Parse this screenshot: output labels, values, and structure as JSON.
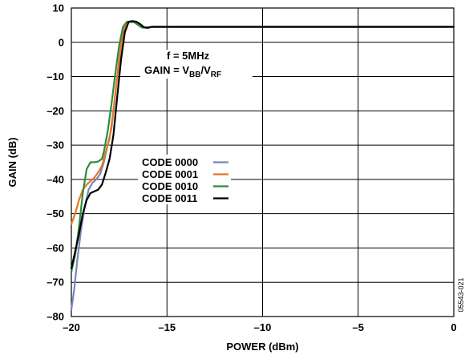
{
  "chart_data": {
    "type": "line",
    "xlabel": "POWER (dBm)",
    "ylabel": "GAIN (dB)",
    "xlim": [
      -20,
      0
    ],
    "ylim": [
      -80,
      10
    ],
    "x_ticks": [
      "–20",
      "–15",
      "–10",
      "–5",
      "0"
    ],
    "x_tick_values": [
      -20,
      -15,
      -10,
      -5,
      0
    ],
    "y_ticks": [
      "10",
      "0",
      "–10",
      "–20",
      "–30",
      "–40",
      "–50",
      "–60",
      "–70",
      "–80"
    ],
    "y_tick_values": [
      10,
      0,
      -10,
      -20,
      -30,
      -40,
      -50,
      -60,
      -70,
      -80
    ],
    "grid": true,
    "annotation": {
      "line1": "f = 5MHz",
      "gain_prefix": "GAIN = V",
      "sub1": "BB",
      "slash": "/V",
      "sub2": "RF"
    },
    "legend_placement": "center-left",
    "figure_id": "05543-021",
    "series": [
      {
        "name": "CODE 0000",
        "color": "#7b85bd",
        "points": [
          [
            -20,
            -78
          ],
          [
            -19.85,
            -72
          ],
          [
            -19.7,
            -64
          ],
          [
            -19.5,
            -55
          ],
          [
            -19.3,
            -48
          ],
          [
            -19.1,
            -43
          ],
          [
            -18.9,
            -41
          ],
          [
            -18.7,
            -40
          ],
          [
            -18.5,
            -38.5
          ],
          [
            -18.3,
            -35
          ],
          [
            -18.1,
            -30
          ],
          [
            -17.9,
            -25
          ],
          [
            -17.7,
            -15
          ],
          [
            -17.5,
            -5
          ],
          [
            -17.3,
            3
          ],
          [
            -17.1,
            5.5
          ],
          [
            -16.9,
            6
          ],
          [
            -16.7,
            6
          ],
          [
            -16.5,
            5.5
          ],
          [
            -16.3,
            4.6
          ],
          [
            -16.1,
            4.2
          ],
          [
            -15.8,
            4.5
          ],
          [
            -15.5,
            4.5
          ],
          [
            -14,
            4.5
          ],
          [
            -10,
            4.5
          ],
          [
            -5,
            4.5
          ],
          [
            0,
            4.5
          ]
        ]
      },
      {
        "name": "CODE 0001",
        "color": "#e87722",
        "points": [
          [
            -20,
            -53
          ],
          [
            -19.8,
            -50
          ],
          [
            -19.6,
            -46
          ],
          [
            -19.4,
            -43
          ],
          [
            -19.2,
            -41.5
          ],
          [
            -19.0,
            -40.5
          ],
          [
            -18.8,
            -39.5
          ],
          [
            -18.6,
            -38
          ],
          [
            -18.4,
            -36
          ],
          [
            -18.2,
            -32
          ],
          [
            -18.0,
            -28
          ],
          [
            -17.8,
            -20
          ],
          [
            -17.6,
            -10
          ],
          [
            -17.4,
            -1
          ],
          [
            -17.2,
            4.5
          ],
          [
            -17.0,
            6
          ],
          [
            -16.8,
            6
          ],
          [
            -16.6,
            5.8
          ],
          [
            -16.4,
            5
          ],
          [
            -16.2,
            4.3
          ],
          [
            -16.0,
            4.3
          ],
          [
            -15.7,
            4.5
          ],
          [
            -15.5,
            4.5
          ],
          [
            -14,
            4.5
          ],
          [
            -10,
            4.5
          ],
          [
            -5,
            4.5
          ],
          [
            0,
            4.5
          ]
        ]
      },
      {
        "name": "CODE 0010",
        "color": "#2e8b3a",
        "points": [
          [
            -20,
            -67
          ],
          [
            -19.8,
            -62
          ],
          [
            -19.6,
            -54
          ],
          [
            -19.4,
            -44
          ],
          [
            -19.2,
            -37
          ],
          [
            -19.0,
            -35
          ],
          [
            -18.8,
            -35
          ],
          [
            -18.6,
            -34.8
          ],
          [
            -18.4,
            -34
          ],
          [
            -18.3,
            -32
          ],
          [
            -18.1,
            -26
          ],
          [
            -17.9,
            -18
          ],
          [
            -17.7,
            -9
          ],
          [
            -17.5,
            -1
          ],
          [
            -17.3,
            4.5
          ],
          [
            -17.1,
            6
          ],
          [
            -16.9,
            6
          ],
          [
            -16.7,
            5.8
          ],
          [
            -16.5,
            5
          ],
          [
            -16.3,
            4.3
          ],
          [
            -16.1,
            4.3
          ],
          [
            -15.8,
            4.5
          ],
          [
            -15.5,
            4.5
          ],
          [
            -14,
            4.5
          ],
          [
            -10,
            4.5
          ],
          [
            -5,
            4.5
          ],
          [
            0,
            4.5
          ]
        ]
      },
      {
        "name": "CODE 0011",
        "color": "#000000",
        "points": [
          [
            -20,
            -66
          ],
          [
            -19.8,
            -61
          ],
          [
            -19.6,
            -56
          ],
          [
            -19.4,
            -50
          ],
          [
            -19.2,
            -46
          ],
          [
            -19.0,
            -44
          ],
          [
            -18.8,
            -43.5
          ],
          [
            -18.6,
            -43
          ],
          [
            -18.4,
            -41.5
          ],
          [
            -18.2,
            -38
          ],
          [
            -18.0,
            -34
          ],
          [
            -17.8,
            -27
          ],
          [
            -17.6,
            -16
          ],
          [
            -17.4,
            -5
          ],
          [
            -17.2,
            3
          ],
          [
            -17.0,
            6
          ],
          [
            -16.8,
            6.2
          ],
          [
            -16.6,
            6
          ],
          [
            -16.4,
            5.3
          ],
          [
            -16.2,
            4.4
          ],
          [
            -16.0,
            4.2
          ],
          [
            -15.8,
            4.5
          ],
          [
            -15.5,
            4.5
          ],
          [
            -14,
            4.5
          ],
          [
            -10,
            4.5
          ],
          [
            -5,
            4.5
          ],
          [
            0,
            4.5
          ]
        ]
      }
    ]
  }
}
